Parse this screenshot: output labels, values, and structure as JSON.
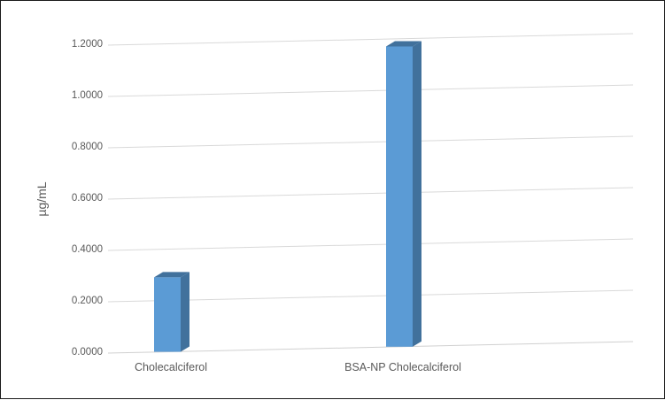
{
  "chart_data": {
    "type": "bar",
    "style": "3d-column",
    "title": "",
    "xlabel": "",
    "ylabel": "µg/mL",
    "categories": [
      "Cholecalciferol",
      "BSA-NP Cholecalciferol"
    ],
    "values": [
      0.29,
      1.17
    ],
    "yticks": [
      "0.0000",
      "0.2000",
      "0.4000",
      "0.6000",
      "0.8000",
      "1.0000",
      "1.2000"
    ],
    "ytick_values": [
      0,
      0.2,
      0.4,
      0.6,
      0.8,
      1.0,
      1.2
    ],
    "ylim": [
      0,
      1.2
    ],
    "grid": true,
    "legend": "none",
    "colors": {
      "bar_front": "#5B9BD5",
      "bar_side": "#41719C",
      "bar_top": "#41719C",
      "gridline": "#D9D9D9",
      "axis_line": "#D0D0D0",
      "label_text": "#595959",
      "border": "#1A1A1A",
      "background": "#FFFFFF"
    }
  }
}
